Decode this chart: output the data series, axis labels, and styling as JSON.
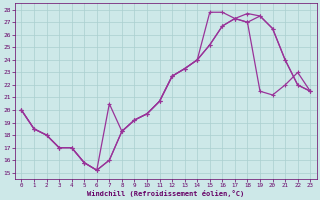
{
  "bg_color": "#cde8e8",
  "line_color": "#993399",
  "grid_color": "#aacfcf",
  "tick_color": "#660066",
  "xlabel": "Windchill (Refroidissement éolien,°C)",
  "xlim": [
    -0.5,
    23.5
  ],
  "ylim": [
    14.5,
    28.5
  ],
  "xticks": [
    0,
    1,
    2,
    3,
    4,
    5,
    6,
    7,
    8,
    9,
    10,
    11,
    12,
    13,
    14,
    15,
    16,
    17,
    18,
    19,
    20,
    21,
    22,
    23
  ],
  "yticks": [
    15,
    16,
    17,
    18,
    19,
    20,
    21,
    22,
    23,
    24,
    25,
    26,
    27,
    28
  ],
  "line1_x": [
    0,
    1,
    2,
    3,
    4,
    5,
    6,
    7,
    8,
    9,
    10,
    11,
    12,
    13,
    14,
    15,
    16,
    17,
    18,
    19,
    20,
    21,
    22,
    23
  ],
  "line1_y": [
    20,
    18.5,
    18,
    17,
    17,
    15.8,
    15.2,
    16.0,
    18.3,
    19.2,
    19.7,
    20.7,
    22.7,
    23.3,
    24.0,
    27.8,
    27.8,
    27.3,
    27.7,
    27.5,
    26.5,
    24.0,
    22.0,
    21.5
  ],
  "line2_x": [
    0,
    1,
    2,
    3,
    4,
    5,
    6,
    7,
    8,
    9,
    10,
    11,
    12,
    13,
    14,
    15,
    16,
    17,
    18,
    19,
    20,
    21,
    22,
    23
  ],
  "line2_y": [
    20,
    18.5,
    18,
    17,
    17,
    15.8,
    15.2,
    20.5,
    18.3,
    19.2,
    19.7,
    20.7,
    22.7,
    23.3,
    24.0,
    25.2,
    26.7,
    27.3,
    27.0,
    27.5,
    26.5,
    24.0,
    22.0,
    21.5
  ],
  "line3_x": [
    0,
    1,
    2,
    3,
    4,
    5,
    6,
    7,
    8,
    9,
    10,
    11,
    12,
    13,
    14,
    15,
    16,
    17,
    18,
    19,
    20,
    21,
    22,
    23
  ],
  "line3_y": [
    20,
    18.5,
    18,
    17,
    17,
    15.8,
    15.2,
    16.0,
    18.3,
    19.2,
    19.7,
    20.7,
    22.7,
    23.3,
    24.0,
    25.2,
    26.7,
    27.3,
    27.0,
    21.5,
    21.2,
    22.0,
    23.0,
    21.5
  ],
  "marker": "+",
  "markersize": 3.5,
  "linewidth": 0.9
}
